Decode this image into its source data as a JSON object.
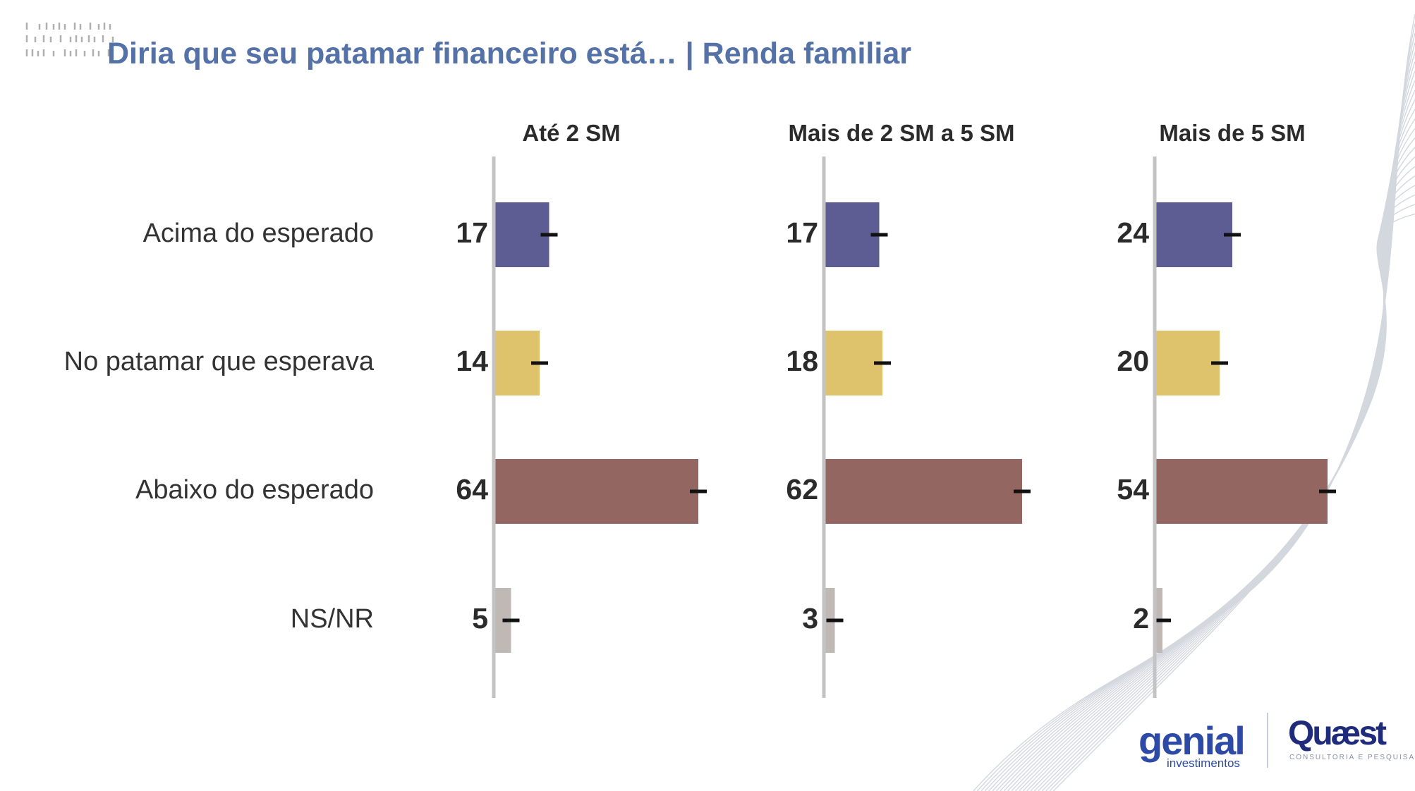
{
  "page": {
    "title": "Diria que seu patamar financeiro está… | Renda familiar"
  },
  "chart_data": {
    "type": "bar",
    "orientation": "horizontal",
    "categories": [
      "Acima do esperado",
      "No patamar que esperava",
      "Abaixo do esperado",
      "NS/NR"
    ],
    "category_colors": [
      "#5d5c93",
      "#dfc26c",
      "#936661",
      "#bfb8b5"
    ],
    "panels": [
      {
        "title": "Até 2 SM",
        "values": [
          17,
          14,
          64,
          5
        ]
      },
      {
        "title": "Mais de 2 SM a 5 SM",
        "values": [
          17,
          18,
          62,
          3
        ]
      },
      {
        "title": "Mais de 5 SM",
        "values": [
          24,
          20,
          54,
          2
        ]
      }
    ],
    "xlim": [
      0,
      70
    ],
    "error_bars": true,
    "grid": false,
    "legend": "none"
  },
  "colors": {
    "title": "#5472a8",
    "axis": "#c3c3c3",
    "error_bar": "#111111"
  },
  "logos": {
    "genial": {
      "word": "genial",
      "sub": "investimentos"
    },
    "quaest": {
      "word": "Quæst",
      "sub": "CONSULTORIA E PESQUISA"
    }
  },
  "icons": [
    "dashes-decoration-icon",
    "wave-lines-decoration"
  ]
}
